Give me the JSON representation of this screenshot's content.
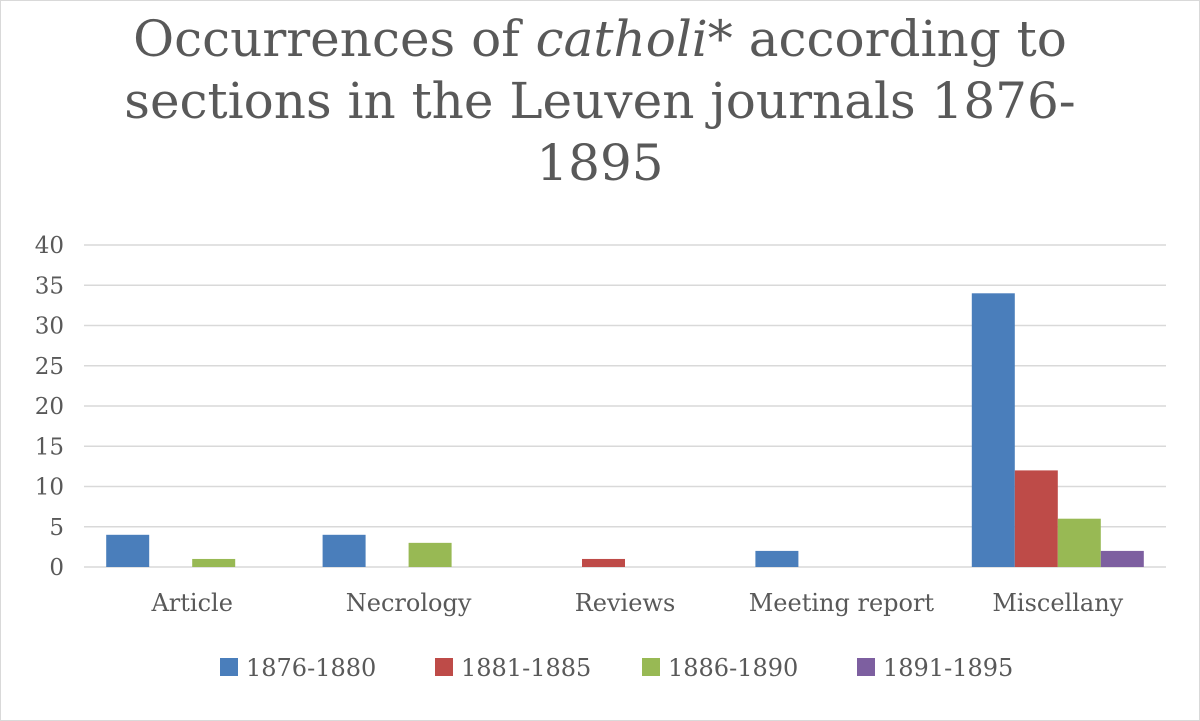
{
  "chart_data": {
    "type": "bar",
    "title_parts": [
      {
        "text": "Occurrences of ",
        "italic": false
      },
      {
        "text": "catholi*",
        "italic": true
      },
      {
        "text": " according to sections in the Leuven journals 1876-1895",
        "italic": false
      }
    ],
    "title_lines": [
      [
        {
          "text": "Occurrences of ",
          "italic": false
        },
        {
          "text": "catholi*",
          "italic": true
        },
        {
          "text": " according to",
          "italic": false
        }
      ],
      [
        {
          "text": "sections in the Leuven journals 1876-",
          "italic": false
        }
      ],
      [
        {
          "text": "1895",
          "italic": false
        }
      ]
    ],
    "categories": [
      "Article",
      "Necrology",
      "Reviews",
      "Meeting report",
      "Miscellany"
    ],
    "series": [
      {
        "name": "1876-1880",
        "color": "#4a7ebb",
        "values": [
          4,
          4,
          0,
          2,
          34
        ]
      },
      {
        "name": "1881-1885",
        "color": "#be4b48",
        "values": [
          0,
          0,
          1,
          0,
          12
        ]
      },
      {
        "name": "1886-1890",
        "color": "#98b954",
        "values": [
          1,
          3,
          0,
          0,
          6
        ]
      },
      {
        "name": "1891-1895",
        "color": "#7d5fa0",
        "values": [
          0,
          0,
          0,
          0,
          2
        ]
      }
    ],
    "y_ticks": [
      0,
      5,
      10,
      15,
      20,
      25,
      30,
      35,
      40
    ],
    "ylim": [
      0,
      40
    ],
    "grid": true,
    "legend_position": "bottom",
    "gridline_color": "#d9d9d9",
    "text_color": "#595959"
  }
}
